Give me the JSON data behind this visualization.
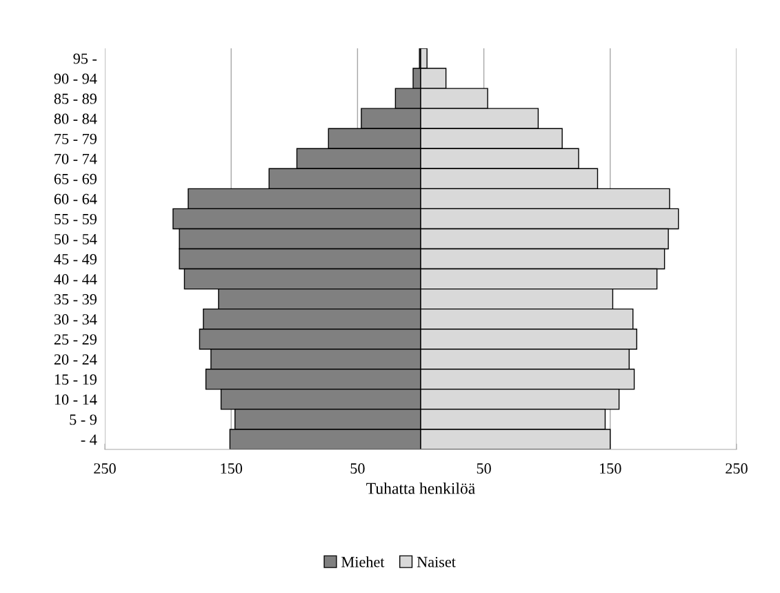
{
  "chart_data": {
    "type": "bar",
    "orientation": "horizontal",
    "xlabel": "Tuhatta henkilöä",
    "categories": [
      "95 -",
      "90 - 94",
      "85 - 89",
      "80 - 84",
      "75 - 79",
      "70 - 74",
      "65 - 69",
      "60 - 64",
      "55 - 59",
      "50 - 54",
      "45 - 49",
      "40 - 44",
      "35 - 39",
      "30 - 34",
      "25 - 29",
      "20 - 24",
      "15 - 19",
      "10 - 14",
      "5 - 9",
      "- 4"
    ],
    "series": [
      {
        "name": "Miehet",
        "color": "#808080",
        "values": [
          -1,
          -6,
          -20,
          -47,
          -73,
          -98,
          -120,
          -184,
          -196,
          -191,
          -191,
          -187,
          -160,
          -172,
          -175,
          -166,
          -170,
          -158,
          -147,
          -151
        ]
      },
      {
        "name": "Naiset",
        "color": "#d9d9d9",
        "values": [
          5,
          20,
          53,
          93,
          112,
          125,
          140,
          197,
          204,
          196,
          193,
          187,
          152,
          168,
          171,
          165,
          169,
          157,
          146,
          150
        ]
      }
    ],
    "xlim": [
      -250,
      250
    ],
    "xticks": [
      {
        "value": -250,
        "label": "250"
      },
      {
        "value": -150,
        "label": "150"
      },
      {
        "value": -50,
        "label": "50"
      },
      50,
      150,
      250
    ],
    "stacked": true,
    "grid": "x",
    "legend": "bottom"
  }
}
